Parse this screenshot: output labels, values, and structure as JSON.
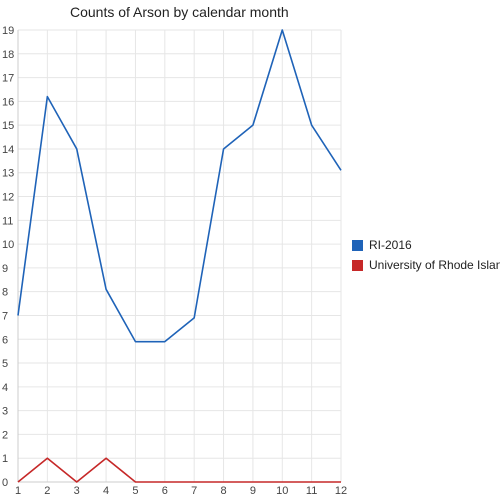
{
  "chart_data": {
    "type": "line",
    "title": "Counts of Arson by calendar month",
    "xlabel": "",
    "ylabel": "",
    "x": [
      1,
      2,
      3,
      4,
      5,
      6,
      7,
      8,
      9,
      10,
      11,
      12
    ],
    "xlim": [
      1,
      12
    ],
    "ylim": [
      0,
      19
    ],
    "yticks": [
      0,
      1,
      2,
      3,
      4,
      5,
      6,
      7,
      8,
      9,
      10,
      11,
      12,
      13,
      14,
      15,
      16,
      17,
      18,
      19
    ],
    "grid": true,
    "legend": "right",
    "series": [
      {
        "name": "RI-2016",
        "color": "#1f63b8",
        "values": [
          7,
          16.2,
          14,
          8.1,
          5.9,
          5.9,
          6.9,
          14,
          15,
          19,
          15,
          13.1
        ]
      },
      {
        "name": "University of Rhode Island",
        "color": "#c62828",
        "values": [
          0,
          1,
          0,
          1,
          0,
          0,
          0,
          0,
          0,
          0,
          0,
          0
        ]
      }
    ]
  }
}
